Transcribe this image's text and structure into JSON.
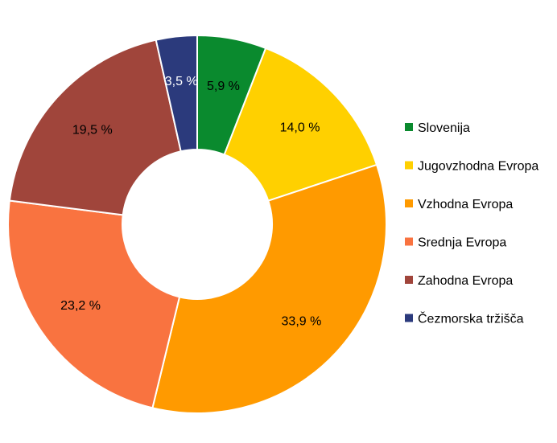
{
  "chart_data": {
    "type": "pie",
    "donut": true,
    "legend_position": "right",
    "slices": [
      {
        "label": "Slovenija",
        "value": 5.9,
        "value_label": "5,9 %",
        "color": "#0A8A2E",
        "text_color": "#000000"
      },
      {
        "label": "Jugovzhodna Evropa",
        "value": 14.0,
        "value_label": "14,0 %",
        "color": "#FFD000",
        "text_color": "#000000"
      },
      {
        "label": "Vzhodna Evropa",
        "value": 33.9,
        "value_label": "33,9 %",
        "color": "#FF9A00",
        "text_color": "#000000"
      },
      {
        "label": "Srednja Evropa",
        "value": 23.2,
        "value_label": "23,2 %",
        "color": "#F97340",
        "text_color": "#000000"
      },
      {
        "label": "Zahodna Evropa",
        "value": 19.5,
        "value_label": "19,5 %",
        "color": "#A0453B",
        "text_color": "#000000"
      },
      {
        "label": "Čezmorska tržišča",
        "value": 3.5,
        "value_label": "3,5 %",
        "color": "#2B3A7C",
        "text_color": "#ffffff"
      }
    ]
  }
}
